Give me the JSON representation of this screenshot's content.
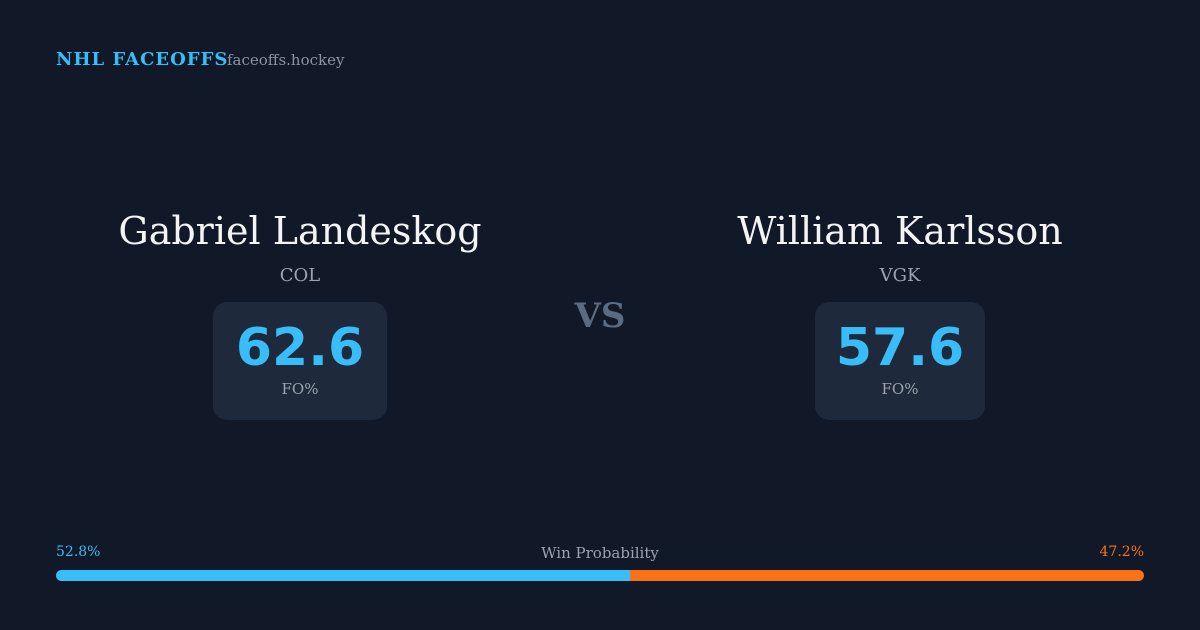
{
  "header": {
    "brand": "NHL FACEOFFS",
    "site": "faceoffs.hockey"
  },
  "players": [
    {
      "name": "Gabriel Landeskog",
      "team": "COL",
      "fo_pct": 62.6,
      "fo_label": "FO%"
    },
    {
      "name": "William Karlsson",
      "team": "VGK",
      "fo_pct": 57.6,
      "fo_label": "FO%"
    }
  ],
  "versus": "VS",
  "win_probability": {
    "title": "Win Probability",
    "left": {
      "value": 52.8,
      "label": "52.8%",
      "color": "#38bdf8"
    },
    "right": {
      "value": 47.2,
      "label": "47.2%",
      "color": "#f97316"
    }
  }
}
